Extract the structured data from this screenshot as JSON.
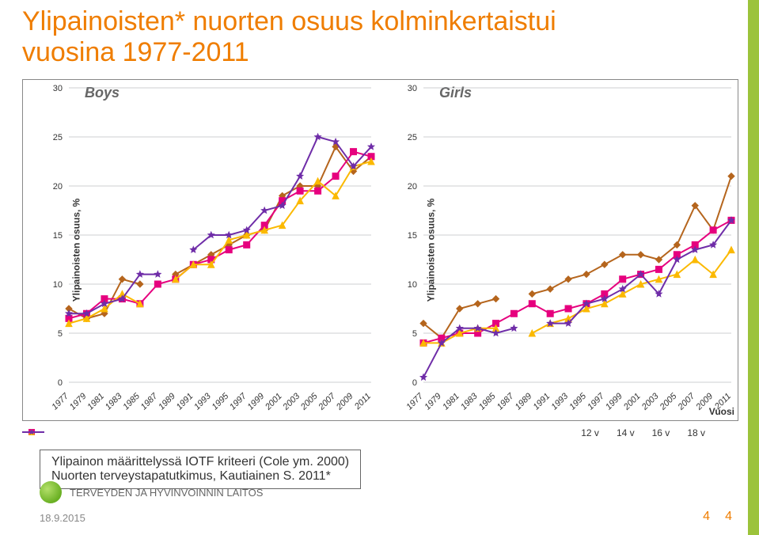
{
  "title": {
    "line1": "Ylipainoisten* nuorten osuus kolminkertaistui",
    "line2": "vuosina 1977-2011"
  },
  "chart": {
    "type": "line",
    "ylabel": "Ylipainoisten osuus, %",
    "xlabel": "Vuosi",
    "ylim": [
      0,
      30
    ],
    "ytick_step": 5,
    "years": [
      1977,
      1979,
      1981,
      1983,
      1985,
      1987,
      1989,
      1991,
      1993,
      1995,
      1997,
      1999,
      2001,
      2003,
      2005,
      2007,
      2009,
      2011
    ],
    "grid_color": "#9aa0a6",
    "background_color": "#ffffff",
    "line_width": 2,
    "marker_size": 6,
    "axis_fontsize": 11,
    "series_meta": [
      {
        "name": "12 v",
        "color": "#b5651d",
        "marker": "diamond"
      },
      {
        "name": "14 v",
        "color": "#e6007e",
        "marker": "square"
      },
      {
        "name": "16 v",
        "color": "#fbb900",
        "marker": "triangle"
      },
      {
        "name": "18 v",
        "color": "#6f2da8",
        "marker": "star"
      }
    ],
    "panels": [
      {
        "label": "Boys",
        "series": [
          [
            7.5,
            6.5,
            7.0,
            10.5,
            10.0,
            null,
            11.0,
            12.0,
            13.0,
            14.0,
            15.0,
            15.5,
            19.0,
            20.0,
            20.0,
            24.0,
            21.5,
            23.0
          ],
          [
            6.5,
            7.0,
            8.5,
            8.5,
            8.0,
            10.0,
            10.5,
            12.0,
            12.5,
            13.5,
            14.0,
            16.0,
            18.5,
            19.5,
            19.5,
            21.0,
            23.5,
            23.0
          ],
          [
            6.0,
            6.5,
            7.5,
            9.0,
            8.0,
            null,
            10.5,
            12.0,
            12.0,
            14.5,
            15.0,
            15.5,
            16.0,
            18.5,
            20.5,
            19.0,
            22.0,
            22.5
          ],
          [
            7.0,
            7.0,
            8.0,
            8.5,
            11.0,
            11.0,
            null,
            13.5,
            15.0,
            15.0,
            15.5,
            17.5,
            18.0,
            21.0,
            25.0,
            24.5,
            22.0,
            24.0
          ]
        ]
      },
      {
        "label": "Girls",
        "series": [
          [
            6.0,
            4.5,
            7.5,
            8.0,
            8.5,
            null,
            9.0,
            9.5,
            10.5,
            11.0,
            12.0,
            13.0,
            13.0,
            12.5,
            14.0,
            18.0,
            15.5,
            21.0
          ],
          [
            4.0,
            4.5,
            5.0,
            5.0,
            6.0,
            7.0,
            8.0,
            7.0,
            7.5,
            8.0,
            9.0,
            10.5,
            11.0,
            11.5,
            13.0,
            14.0,
            15.5,
            16.5
          ],
          [
            4.0,
            4.0,
            5.0,
            5.5,
            5.5,
            null,
            5.0,
            6.0,
            6.5,
            7.5,
            8.0,
            9.0,
            10.0,
            10.5,
            11.0,
            12.5,
            11.0,
            13.5
          ],
          [
            0.5,
            4.0,
            5.5,
            5.5,
            5.0,
            5.5,
            null,
            6.0,
            6.0,
            8.0,
            8.5,
            9.5,
            11.0,
            9.0,
            12.5,
            13.5,
            14.0,
            16.5
          ]
        ]
      }
    ]
  },
  "legend_items": [
    "12 v",
    "14 v",
    "16 v",
    "18 v"
  ],
  "note": {
    "line1": "Ylipainon määrittelyssä IOTF kriteeri (Cole ym. 2000)",
    "line2": "Nuorten terveystapatutkimus, Kautiainen S. 2011*"
  },
  "footer": {
    "org": "TERVEYDEN JA HYVINVOINNIN LAITOS",
    "date": "18.9.2015",
    "page": "4",
    "page2": "4"
  }
}
